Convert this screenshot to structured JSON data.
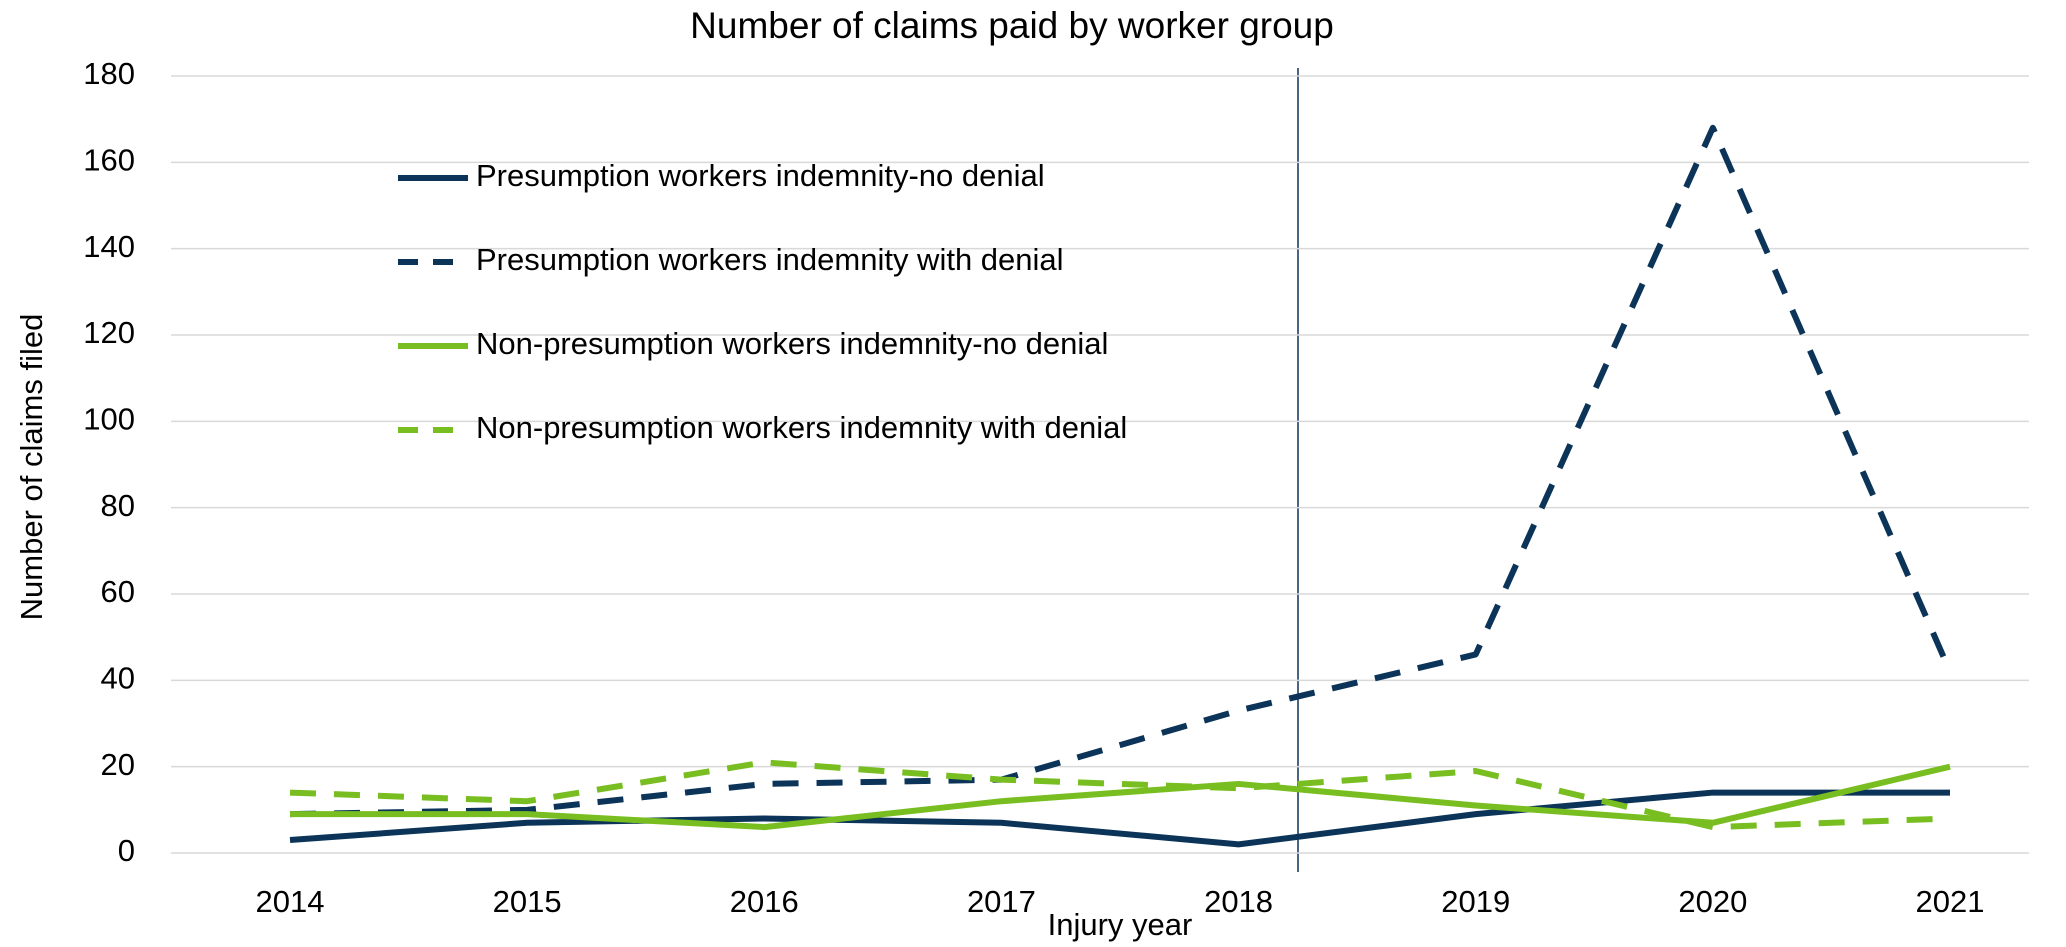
{
  "chart_data": {
    "type": "line",
    "title": "Number of claims paid by worker group",
    "x_label": "Injury year",
    "y_label": "Number of claims filed",
    "categories": [
      "2014",
      "2015",
      "2016",
      "2017",
      "2018",
      "2019",
      "2020",
      "2021"
    ],
    "series": [
      {
        "name": "Presumption workers indemnity-no denial",
        "color": "#0b3458",
        "dashed": false,
        "values": [
          3,
          7,
          8,
          7,
          2,
          9,
          14,
          14
        ]
      },
      {
        "name": "Presumption workers indemnity with denial",
        "color": "#0b3458",
        "dashed": true,
        "values": [
          9,
          10,
          16,
          17,
          33,
          46,
          168,
          42
        ]
      },
      {
        "name": "Non-presumption workers indemnity-no denial",
        "color": "#78be20",
        "dashed": false,
        "values": [
          9,
          9,
          6,
          12,
          16,
          11,
          7,
          20
        ]
      },
      {
        "name": "Non-presumption workers indemnity with denial",
        "color": "#78be20",
        "dashed": true,
        "values": [
          14,
          12,
          21,
          17,
          15,
          19,
          6,
          8
        ]
      }
    ],
    "ylim": [
      0,
      180
    ],
    "yticks": [
      0,
      20,
      40,
      60,
      80,
      100,
      120,
      140,
      160,
      180
    ],
    "grid": true,
    "legend": "upper left"
  }
}
